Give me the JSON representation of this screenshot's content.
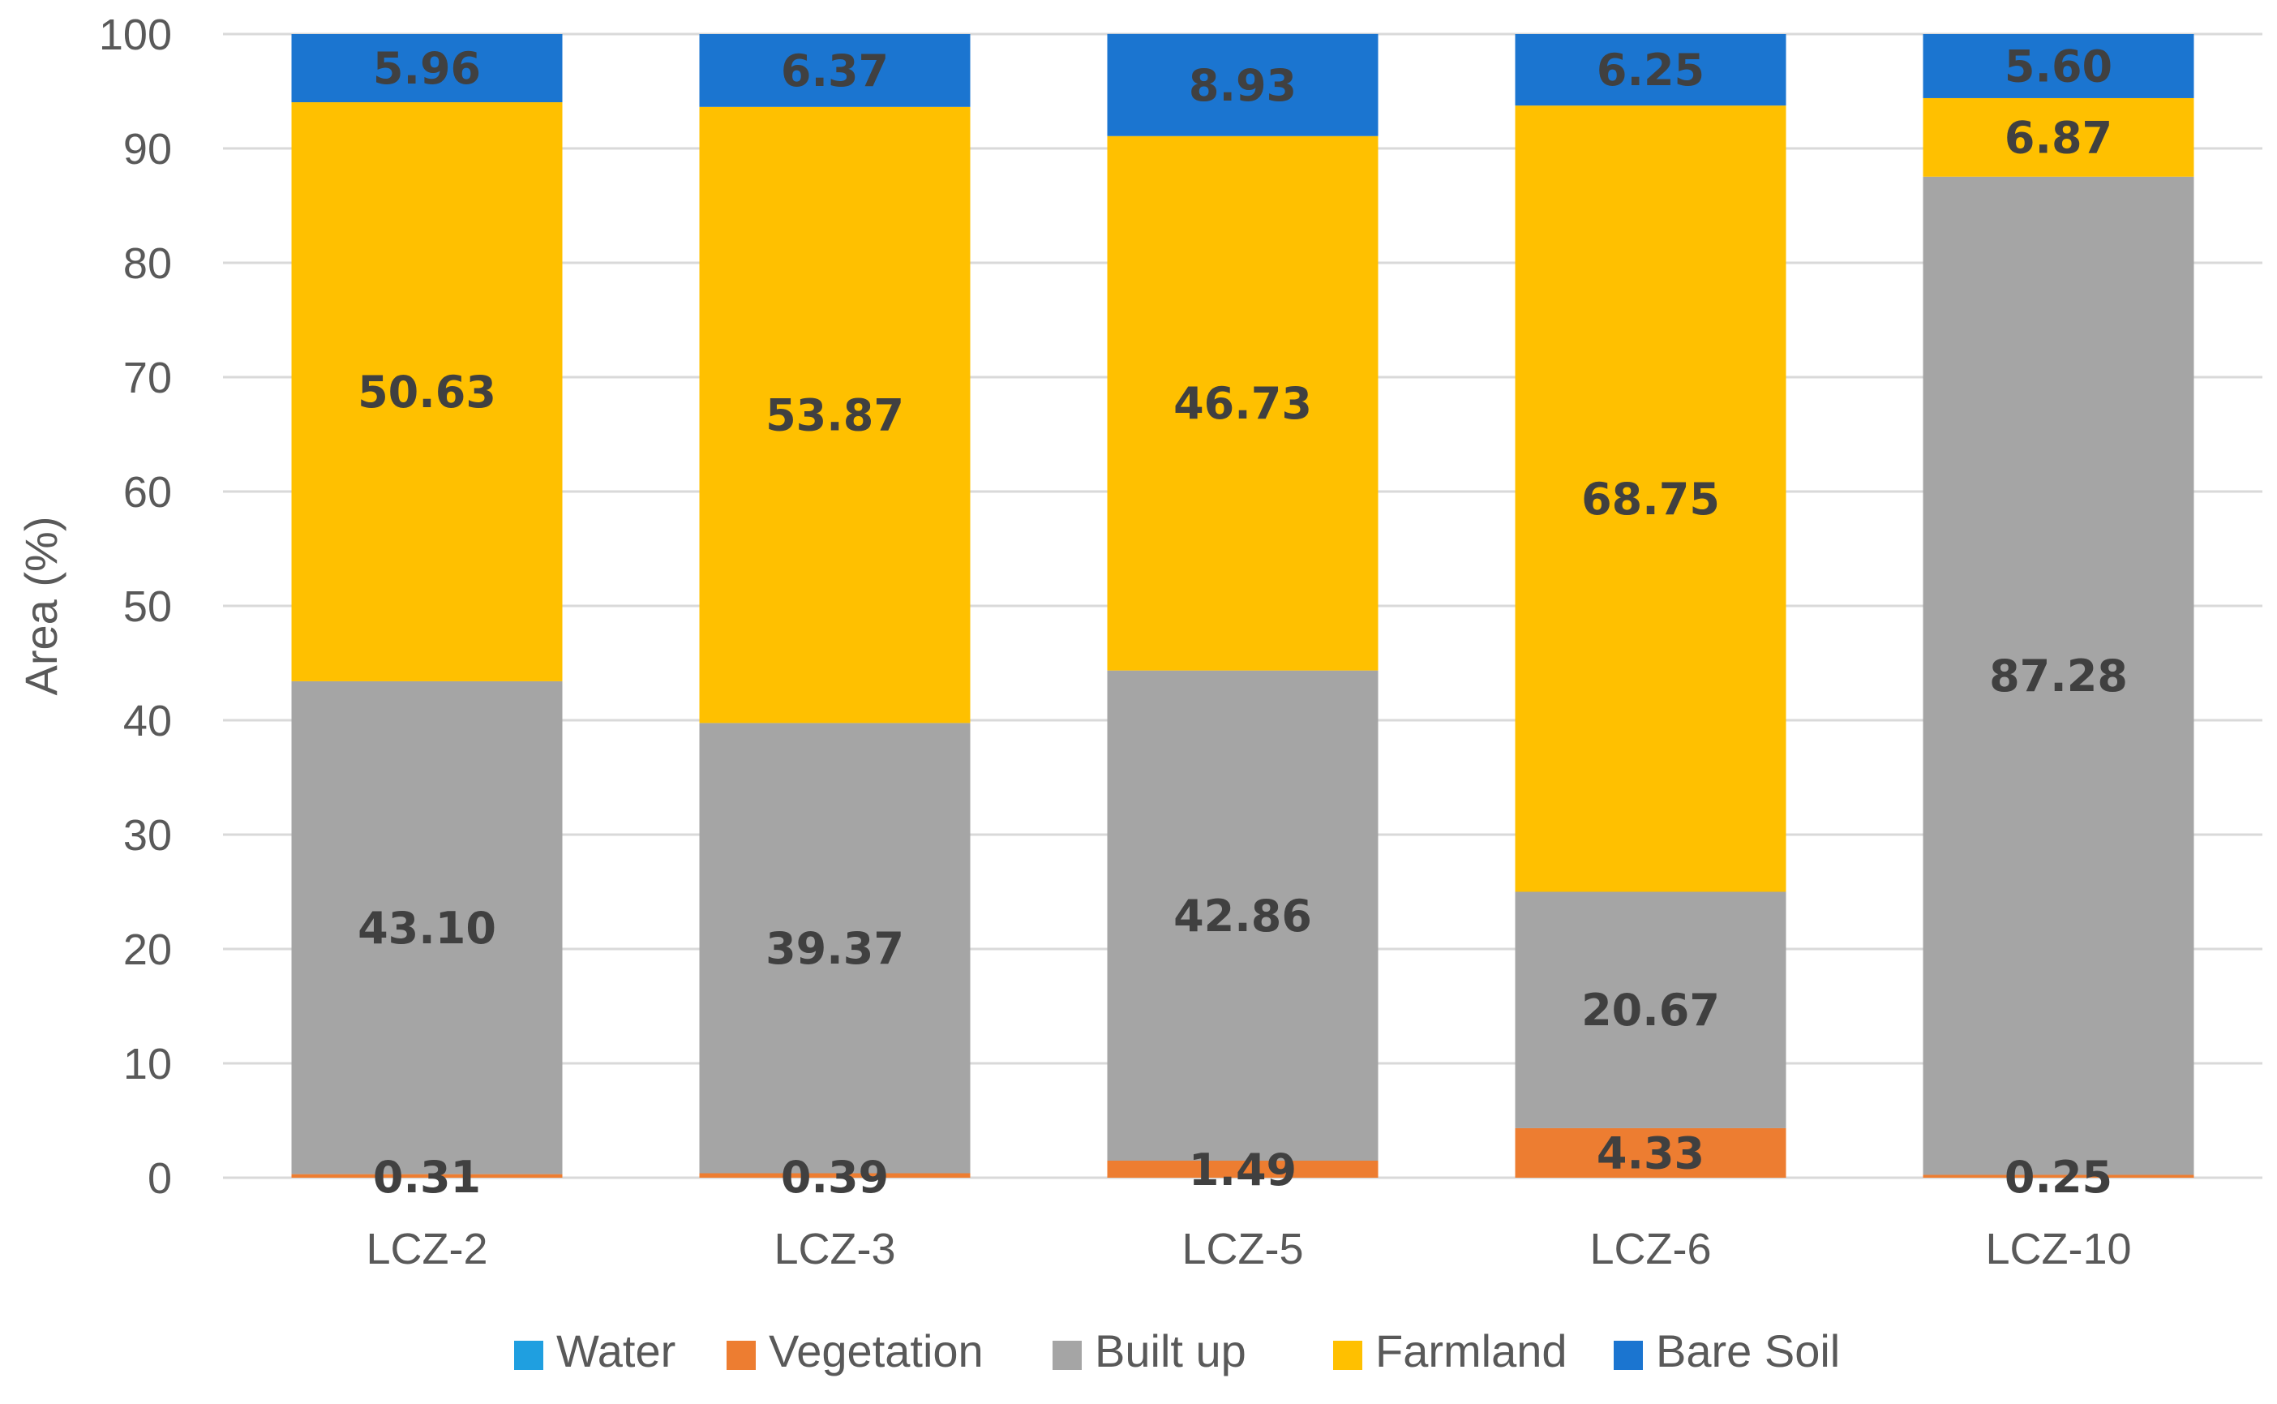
{
  "chart_data": {
    "type": "bar",
    "stacked": true,
    "title": "",
    "xlabel": "",
    "ylabel": "Area (%)",
    "ylim": [
      0,
      100
    ],
    "yticks": [
      0,
      10,
      20,
      30,
      40,
      50,
      60,
      70,
      80,
      90,
      100
    ],
    "grid": true,
    "legend_position": "bottom",
    "categories": [
      "LCZ-2",
      "LCZ-3",
      "LCZ-5",
      "LCZ-6",
      "LCZ-10"
    ],
    "series": [
      {
        "name": "Water",
        "color": "#1f9fe0",
        "values": [
          0,
          0,
          0,
          0,
          0
        ],
        "labels": [
          "",
          "",
          "",
          "",
          ""
        ]
      },
      {
        "name": "Vegetation",
        "color": "#ed7d31",
        "values": [
          0.31,
          0.39,
          1.49,
          4.33,
          0.25
        ],
        "labels": [
          "0.31",
          "0.39",
          "1.49",
          "4.33",
          "0.25"
        ]
      },
      {
        "name": "Built up",
        "color": "#a5a5a5",
        "values": [
          43.1,
          39.37,
          42.86,
          20.67,
          87.28
        ],
        "labels": [
          "43.10",
          "39.37",
          "42.86",
          "20.67",
          "87.28"
        ]
      },
      {
        "name": "Farmland",
        "color": "#ffc000",
        "values": [
          50.63,
          53.87,
          46.73,
          68.75,
          6.87
        ],
        "labels": [
          "50.63",
          "53.87",
          "46.73",
          "68.75",
          "6.87"
        ]
      },
      {
        "name": "Bare Soil",
        "color": "#1b75d0",
        "values": [
          5.96,
          6.37,
          8.93,
          6.25,
          5.6
        ],
        "labels": [
          "5.96",
          "6.37",
          "8.93",
          "6.25",
          "5.60"
        ]
      }
    ]
  }
}
